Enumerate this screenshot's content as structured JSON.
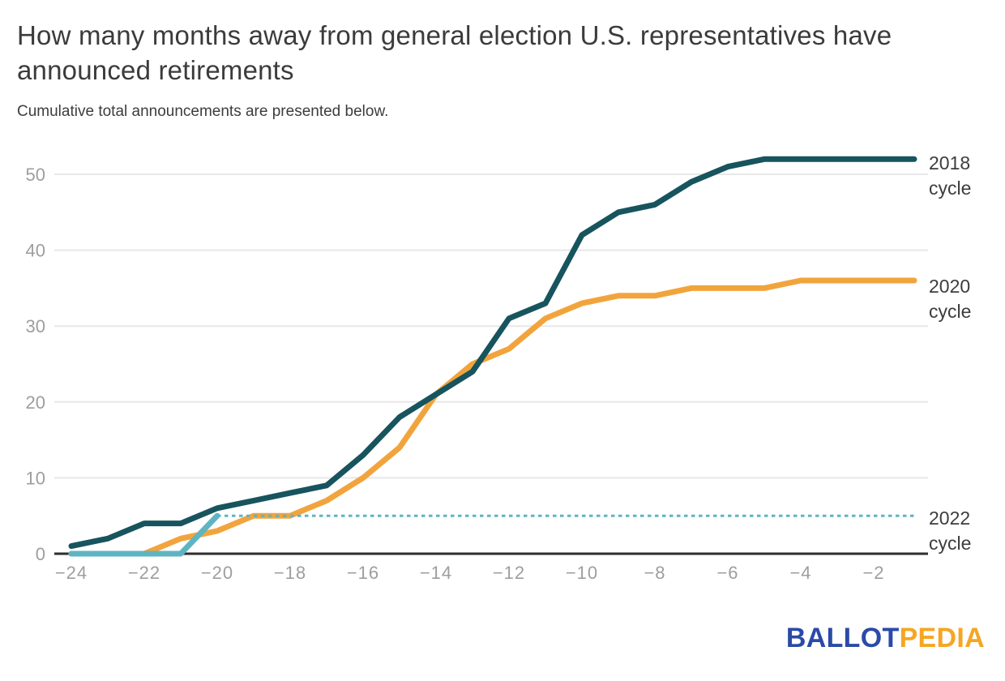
{
  "title": "How many months away from general election U.S. representatives have announced retirements",
  "subtitle": "Cumulative total announcements are presented below.",
  "branding": {
    "logo_part1": "BALLOT",
    "logo_part2": "PEDIA"
  },
  "colors": {
    "series_2018": "#17545E",
    "series_2020": "#F2A43C",
    "series_2022": "#5FB4C2",
    "axis": "#2E2E2E",
    "gridline": "#E8E8E8",
    "tick_label": "#9E9E9E",
    "text": "#3B3B3B",
    "logo_blue": "#2B4AA8",
    "logo_yellow": "#F5A623"
  },
  "chart_data": {
    "type": "line",
    "title": "How many months away from general election U.S. representatives have announced retirements",
    "subtitle": "Cumulative total announcements are presented below.",
    "xlabel": "",
    "ylabel": "",
    "xlim": [
      -24,
      -1
    ],
    "ylim": [
      0,
      55
    ],
    "grid": "horizontal",
    "legend_position": "right-edge-labels",
    "x": [
      -24,
      -23,
      -22,
      -21,
      -20,
      -19,
      -18,
      -17,
      -16,
      -15,
      -14,
      -13,
      -12,
      -11,
      -10,
      -9,
      -8,
      -7,
      -6,
      -5,
      -4,
      -3,
      -2,
      -1
    ],
    "x_ticks": [
      -24,
      -22,
      -20,
      -18,
      -16,
      -14,
      -12,
      -10,
      -8,
      -6,
      -4,
      -2
    ],
    "x_tick_labels": [
      "−24",
      "−22",
      "−20",
      "−18",
      "−16",
      "−14",
      "−12",
      "−10",
      "−8",
      "−6",
      "−4",
      "−2"
    ],
    "y_ticks": [
      0,
      10,
      20,
      30,
      40,
      50
    ],
    "series": [
      {
        "name": "2018 cycle",
        "label_line1": "2018",
        "label_line2": "cycle",
        "color": "#17545E",
        "style": "solid",
        "values": [
          1,
          2,
          4,
          4,
          6,
          7,
          8,
          9,
          13,
          18,
          21,
          24,
          31,
          33,
          42,
          45,
          46,
          49,
          51,
          52,
          52,
          52,
          52,
          52
        ]
      },
      {
        "name": "2020 cycle",
        "label_line1": "2020",
        "label_line2": "cycle",
        "color": "#F2A43C",
        "style": "solid",
        "values": [
          0,
          0,
          0,
          2,
          3,
          5,
          5,
          7,
          10,
          14,
          21,
          25,
          27,
          31,
          33,
          34,
          34,
          35,
          35,
          35,
          36,
          36,
          36,
          36
        ]
      },
      {
        "name": "2022 cycle",
        "label_line1": "2022",
        "label_line2": "cycle",
        "color": "#5FB4C2",
        "style": "solid-then-dotted",
        "solid_x": [
          -24,
          -23,
          -22,
          -21,
          -20
        ],
        "solid_values": [
          0,
          0,
          0,
          0,
          5
        ],
        "projection": {
          "style": "dotted",
          "value": 5,
          "from_x": -20,
          "to_x": -1
        }
      }
    ]
  }
}
